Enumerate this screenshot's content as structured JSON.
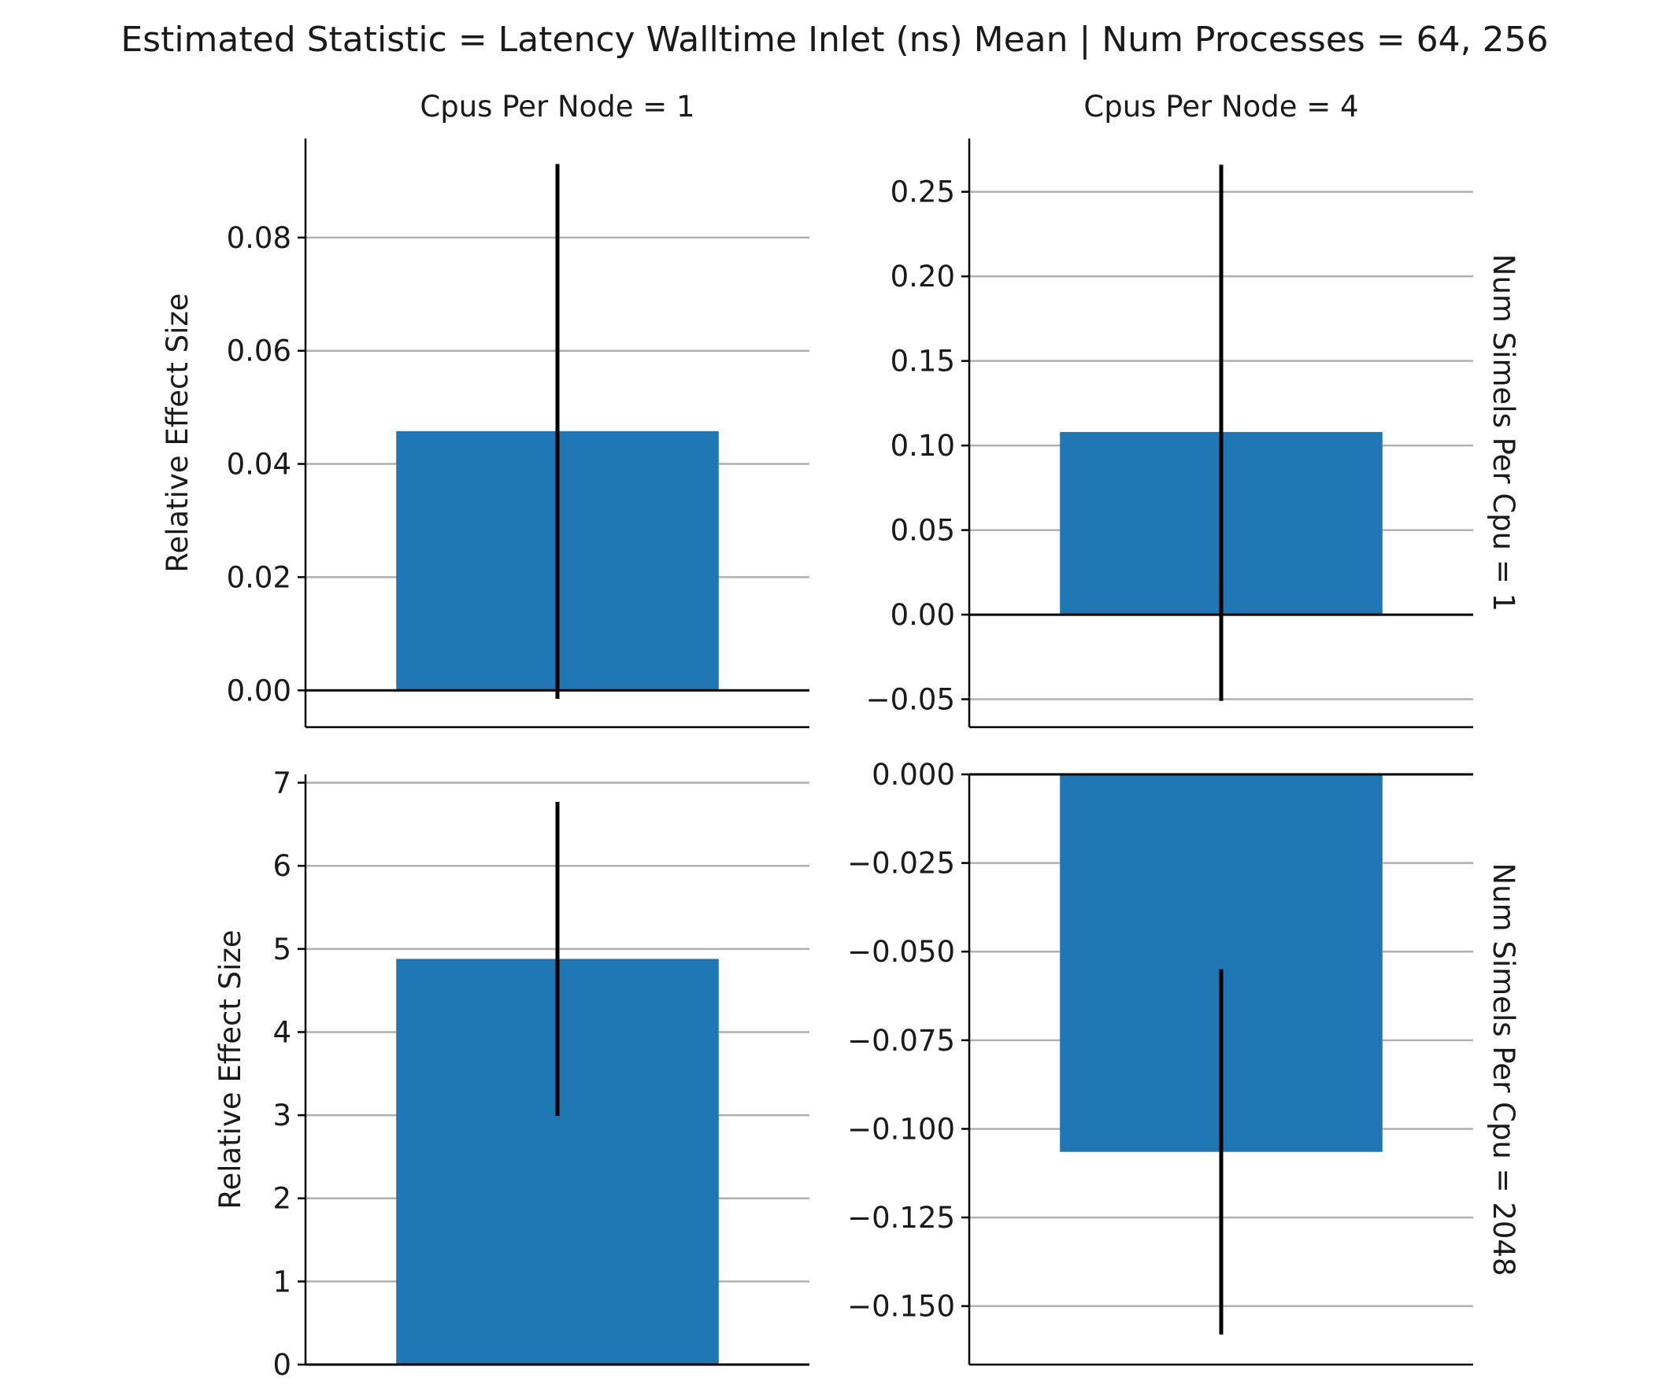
{
  "title": "Estimated Statistic = Latency Walltime Inlet (ns) Mean | Num Processes = 64, 256",
  "colors": {
    "bar": "#1f77b4",
    "error": "#000000",
    "grid": "#b0b0b0",
    "axis": "#000000"
  },
  "chart_data": [
    {
      "type": "bar",
      "col_title": "Cpus Per Node = 1",
      "row_title": "",
      "ylabel": "Relative Effect Size",
      "ylim": [
        -0.0065,
        0.0975
      ],
      "yticks": [
        0.0,
        0.02,
        0.04,
        0.06,
        0.08
      ],
      "ytick_labels": [
        "0.00",
        "0.02",
        "0.04",
        "0.06",
        "0.08"
      ],
      "grid": true,
      "value": 0.0458,
      "ci": [
        -0.0015,
        0.093
      ]
    },
    {
      "type": "bar",
      "col_title": "Cpus Per Node = 4",
      "row_title": "Num Simels Per Cpu = 1",
      "ylabel": "",
      "ylim": [
        -0.0665,
        0.2815
      ],
      "yticks": [
        -0.05,
        0.0,
        0.05,
        0.1,
        0.15,
        0.2,
        0.25
      ],
      "ytick_labels": [
        "−0.05",
        "0.00",
        "0.05",
        "0.10",
        "0.15",
        "0.20",
        "0.25"
      ],
      "grid": true,
      "value": 0.108,
      "ci": [
        -0.051,
        0.266
      ]
    },
    {
      "type": "bar",
      "col_title": "",
      "row_title": "",
      "ylabel": "Relative Effect Size",
      "ylim": [
        0,
        7.1
      ],
      "yticks": [
        0,
        1,
        2,
        3,
        4,
        5,
        6,
        7
      ],
      "ytick_labels": [
        "0",
        "1",
        "2",
        "3",
        "4",
        "5",
        "6",
        "7"
      ],
      "grid": true,
      "value": 4.88,
      "ci": [
        2.99,
        6.77
      ]
    },
    {
      "type": "bar",
      "col_title": "",
      "row_title": "Num Simels Per Cpu = 2048",
      "ylabel": "",
      "ylim": [
        -0.1665,
        0.0
      ],
      "yticks": [
        -0.15,
        -0.125,
        -0.1,
        -0.075,
        -0.05,
        -0.025,
        0.0
      ],
      "ytick_labels": [
        "−0.150",
        "−0.125",
        "−0.100",
        "−0.075",
        "−0.050",
        "−0.025",
        "0.000"
      ],
      "grid": true,
      "value": -0.1065,
      "ci": [
        -0.158,
        -0.055
      ]
    }
  ]
}
